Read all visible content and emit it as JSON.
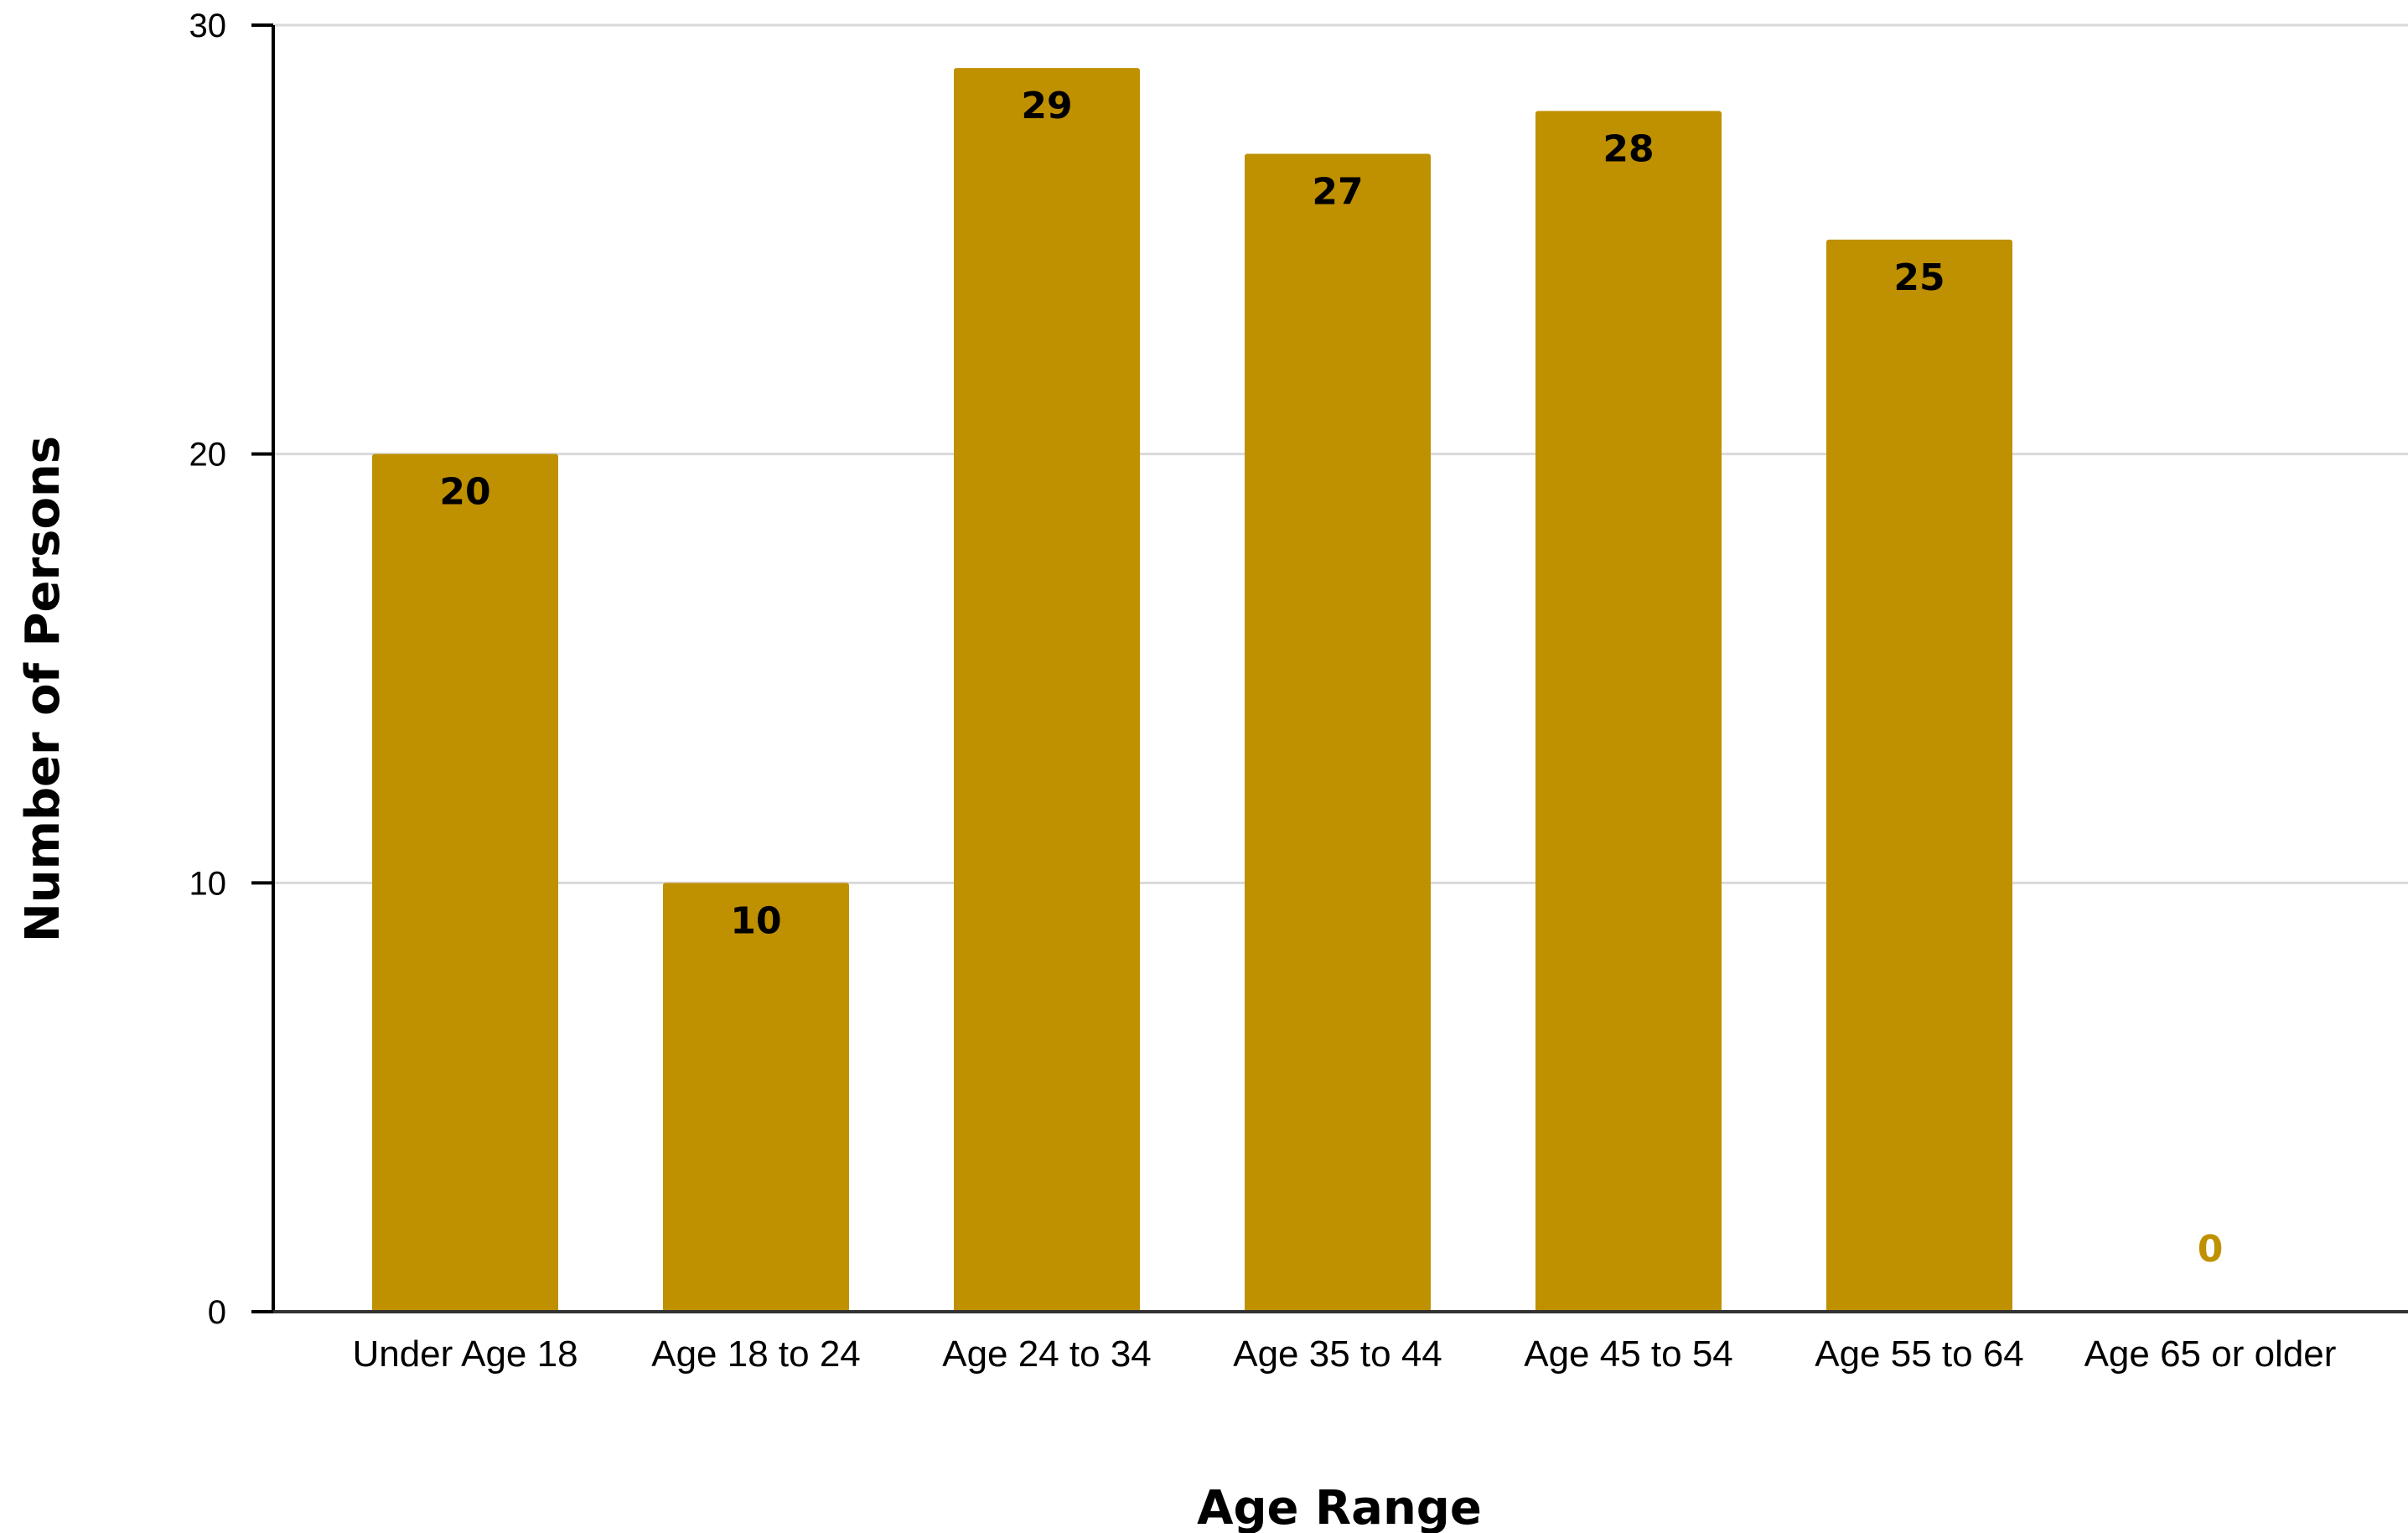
{
  "chart_data": {
    "type": "bar",
    "title": "",
    "xlabel": "Age Range",
    "ylabel": "Number of Persons",
    "categories": [
      "Under Age 18",
      "Age 18 to 24",
      "Age 24 to 34",
      "Age 35 to 44",
      "Age 45 to 54",
      "Age 55 to 64",
      "Age 65 or older"
    ],
    "values": [
      20,
      10,
      29,
      27,
      28,
      25,
      0
    ],
    "ylim": [
      0,
      30
    ],
    "yticks": [
      0,
      10,
      20,
      30
    ],
    "grid": true,
    "legend": "none",
    "colors": {
      "bar": "#BF9000",
      "gridline": "#D9D9D9",
      "axis": "#000000",
      "label_inside": "#000000",
      "label_outside": "#BF9000"
    }
  }
}
